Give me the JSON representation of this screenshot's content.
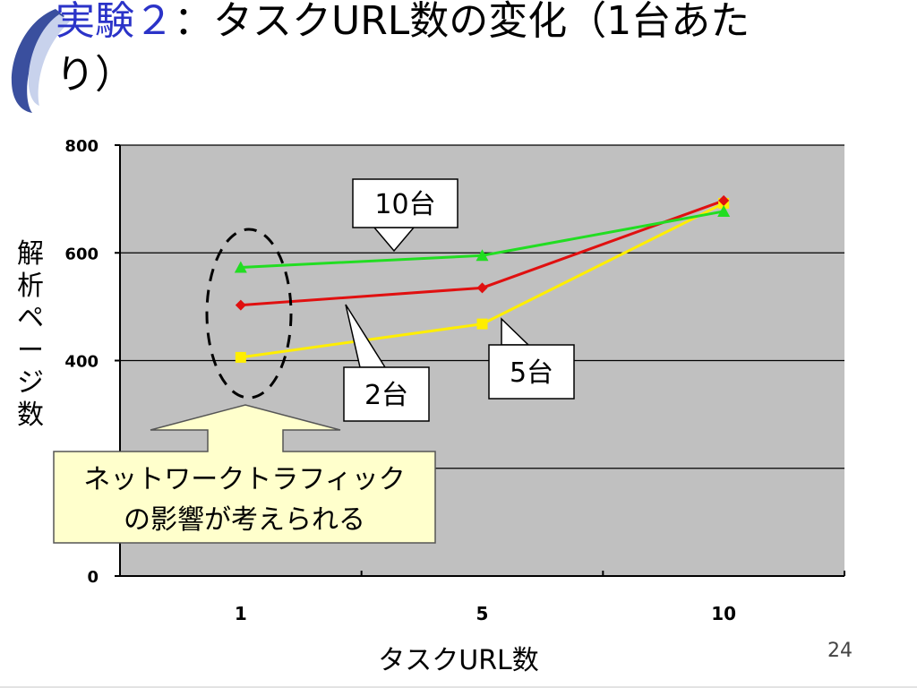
{
  "slide": {
    "title_accent": "実験２",
    "title_rest": "：タスクURL数の変化（1台あた",
    "title_line2": "り）",
    "page_number": "24"
  },
  "chart_data": {
    "type": "line",
    "categories": [
      "1",
      "5",
      "10"
    ],
    "xlabel": "タスクURL数",
    "ylabel": "解析ページ数",
    "ylim": [
      0,
      800
    ],
    "yticks": [
      0,
      400,
      600,
      800
    ],
    "grid": true,
    "series": [
      {
        "name": "10台",
        "values": [
          573,
          595,
          677
        ],
        "color": "#22dd22",
        "marker": "triangle"
      },
      {
        "name": "2台",
        "values": [
          503,
          535,
          697
        ],
        "color": "#e01010",
        "marker": "diamond"
      },
      {
        "name": "5台",
        "values": [
          406,
          468,
          692
        ],
        "color": "#ffee00",
        "marker": "square"
      }
    ]
  },
  "annotations": {
    "network_note_line1": "ネットワークトラフィック",
    "network_note_line2": "の影響が考えられる"
  }
}
